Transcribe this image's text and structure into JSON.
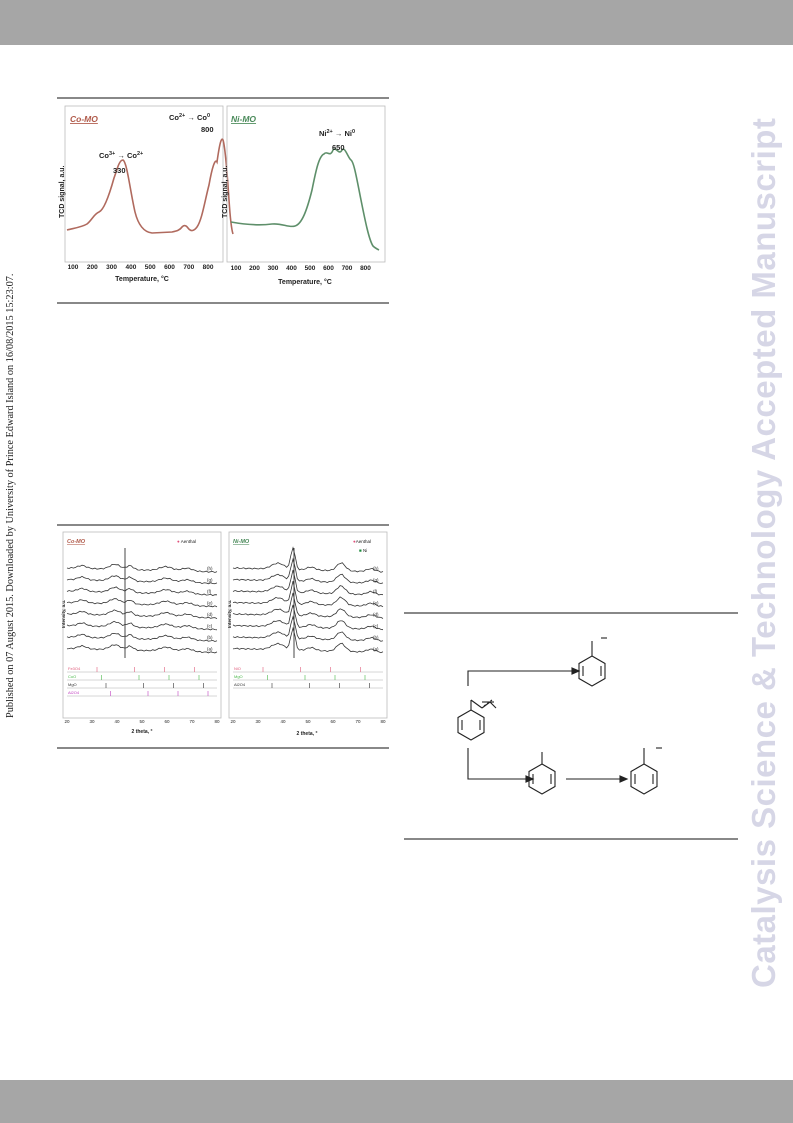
{
  "header": {
    "band_color": "#a6a6a6"
  },
  "footer": {
    "band_color": "#a6a6a6"
  },
  "side_note": "Published on 07 August 2015. Downloaded by University of Prince Edward Island on 16/08/2015 15:23:07.",
  "watermark": "Catalysis Science & Technology Accepted Manuscript",
  "tpr_panels": {
    "co": {
      "title": "Co-MO",
      "ylabel": "TCD signal, a.u.",
      "xlabel": "Temperature, °C",
      "peak1": {
        "label_base": "Co",
        "from": "3+",
        "to": "2+",
        "value": "330"
      },
      "peak2": {
        "label_base": "Co",
        "from": "2+",
        "to": "0",
        "value": "800"
      },
      "color": "#b06a5e"
    },
    "ni": {
      "title": "Ni-MO",
      "ylabel": "TCD signal, a.u.",
      "xlabel": "Temperature, °C",
      "peak1": {
        "label_base": "Ni",
        "from": "2+",
        "to": "0",
        "value": "650"
      },
      "color": "#5e8f6a"
    },
    "xticks": [
      "100",
      "200",
      "300",
      "400",
      "500",
      "600",
      "700",
      "800"
    ]
  },
  "xrd_panels": {
    "co": {
      "title": "Co-MO",
      "legend": "Aenthal",
      "ylabel": "Intensity, a.u.",
      "xlabel": "2 theta, °",
      "curve_labels": [
        "(h)",
        "(g)",
        "(f)",
        "(e)",
        "(d)",
        "(c)",
        "(b)",
        "(a)"
      ],
      "refs": [
        "Fe3O4",
        "CoO",
        "MgO",
        "Al2O4"
      ],
      "xticks": [
        "20",
        "30",
        "40",
        "50",
        "60",
        "70",
        "80"
      ]
    },
    "ni": {
      "title": "Ni-MO",
      "legend1": "Aenthal",
      "legend2": "Ni",
      "ylabel": "Intensity, a.u.",
      "xlabel": "2 theta, °",
      "curve_labels": [
        "(h)",
        "(g)",
        "(f)",
        "(e)",
        "(d)",
        "(c)",
        "(b)",
        "(a)"
      ],
      "refs": [
        "NiO",
        "MgO",
        "Al2O4"
      ],
      "xticks": [
        "20",
        "30",
        "40",
        "50",
        "60",
        "70",
        "80"
      ]
    }
  }
}
